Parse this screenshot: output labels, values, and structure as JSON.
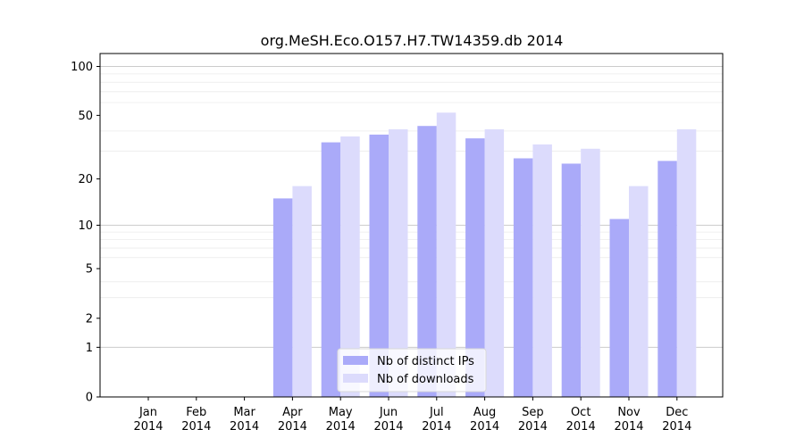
{
  "chart_data": {
    "type": "bar",
    "title": "org.MeSH.Eco.O157.H7.TW14359.db 2014",
    "xlabel": "",
    "ylabel": "",
    "yscale": "log(1+y)",
    "ylim": [
      0,
      120
    ],
    "yticks": [
      0,
      1,
      2,
      5,
      10,
      20,
      50,
      100
    ],
    "grid": true,
    "legend_position": "lower-center",
    "categories": [
      [
        "Jan",
        "2014"
      ],
      [
        "Feb",
        "2014"
      ],
      [
        "Mar",
        "2014"
      ],
      [
        "Apr",
        "2014"
      ],
      [
        "May",
        "2014"
      ],
      [
        "Jun",
        "2014"
      ],
      [
        "Jul",
        "2014"
      ],
      [
        "Aug",
        "2014"
      ],
      [
        "Sep",
        "2014"
      ],
      [
        "Oct",
        "2014"
      ],
      [
        "Nov",
        "2014"
      ],
      [
        "Dec",
        "2014"
      ]
    ],
    "series": [
      {
        "name": "Nb of distinct IPs",
        "color": "#aaaaf9",
        "values": [
          0,
          0,
          0,
          15,
          34,
          38,
          43,
          36,
          27,
          25,
          11,
          26
        ]
      },
      {
        "name": "Nb of downloads",
        "color": "#dcdbfc",
        "values": [
          0,
          0,
          0,
          18,
          37,
          41,
          52,
          41,
          33,
          31,
          18,
          41
        ]
      }
    ]
  }
}
